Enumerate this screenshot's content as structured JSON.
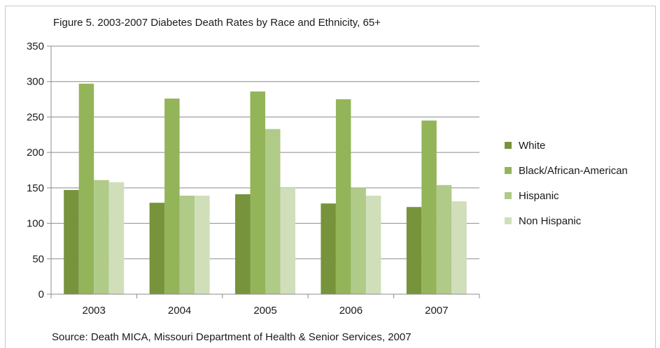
{
  "chart_data": {
    "type": "bar",
    "title": "Figure 5. 2003-2007 Diabetes Death Rates by Race and Ethnicity, 65+",
    "source": "Source: Death MICA, Missouri Department of Health & Senior Services, 2007",
    "categories": [
      "2003",
      "2004",
      "2005",
      "2006",
      "2007"
    ],
    "series": [
      {
        "name": "White",
        "color": "#77933c",
        "values": [
          147,
          129,
          141,
          128,
          123
        ]
      },
      {
        "name": "Black/African-American",
        "color": "#93b459",
        "values": [
          297,
          276,
          286,
          275,
          245
        ]
      },
      {
        "name": "Hispanic",
        "color": "#b0ca88",
        "values": [
          161,
          139,
          233,
          150,
          154
        ]
      },
      {
        "name": "Non Hispanic",
        "color": "#d0dfba",
        "values": [
          158,
          139,
          150,
          139,
          131
        ]
      }
    ],
    "ylim": [
      0,
      350
    ],
    "yticks": [
      "0",
      "50",
      "100",
      "150",
      "200",
      "250",
      "300",
      "350"
    ],
    "grid": true,
    "legend_position": "right",
    "xlabel": "",
    "ylabel": ""
  }
}
